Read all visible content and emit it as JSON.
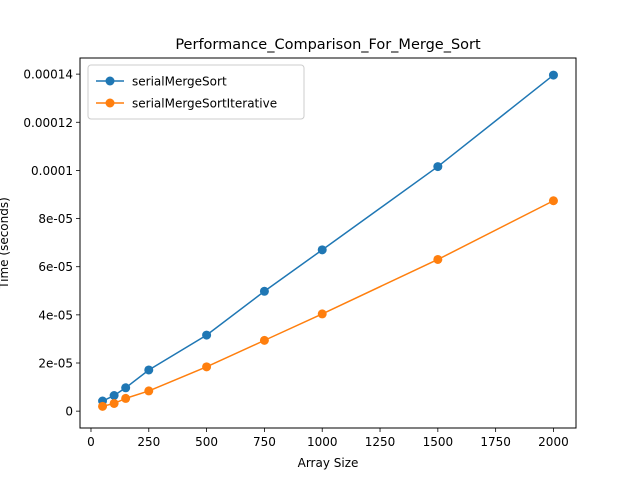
{
  "chart_data": {
    "type": "line",
    "title": "Performance_Comparison_For_Merge_Sort",
    "xlabel": "Array Size",
    "ylabel": "Time (seconds)",
    "x": [
      50,
      100,
      150,
      250,
      500,
      750,
      1000,
      1500,
      2000
    ],
    "series": [
      {
        "name": "serialMergeSort",
        "color": "#1f77b4",
        "values": [
          4.2e-06,
          6.5e-06,
          9.7e-06,
          1.71e-05,
          3.16e-05,
          4.98e-05,
          6.7e-05,
          0.0001016,
          0.0001396
        ]
      },
      {
        "name": "serialMergeSortIterative",
        "color": "#ff7f0e",
        "values": [
          2e-06,
          3.2e-06,
          5.3e-06,
          8.4e-06,
          1.84e-05,
          2.94e-05,
          4.04e-05,
          6.3e-05,
          8.74e-05
        ]
      }
    ],
    "xlim": [
      -47.5,
      2097.5
    ],
    "ylim": [
      -7e-06,
      0.0001467
    ],
    "xticks": [
      {
        "value": 0,
        "label": "0"
      },
      {
        "value": 250,
        "label": "250"
      },
      {
        "value": 500,
        "label": "500"
      },
      {
        "value": 750,
        "label": "750"
      },
      {
        "value": 1000,
        "label": "1000"
      },
      {
        "value": 1250,
        "label": "1250"
      },
      {
        "value": 1500,
        "label": "1500"
      },
      {
        "value": 1750,
        "label": "1750"
      },
      {
        "value": 2000,
        "label": "2000"
      }
    ],
    "yticks": [
      {
        "value": 0,
        "label": "0"
      },
      {
        "value": 2e-05,
        "label": "2e-05"
      },
      {
        "value": 4e-05,
        "label": "4e-05"
      },
      {
        "value": 6e-05,
        "label": "6e-05"
      },
      {
        "value": 8e-05,
        "label": "8e-05"
      },
      {
        "value": 0.0001,
        "label": "0.0001"
      },
      {
        "value": 0.00012,
        "label": "0.00012"
      },
      {
        "value": 0.00014,
        "label": "0.00014"
      }
    ],
    "grid": false,
    "legend_position": "top-left"
  }
}
